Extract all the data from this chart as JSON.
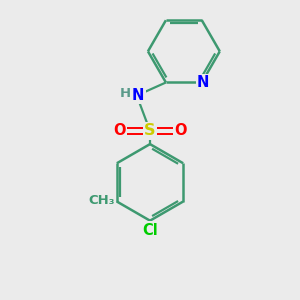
{
  "background_color": "#ebebeb",
  "atom_colors": {
    "C": "#3d9970",
    "N": "#0000ff",
    "S": "#cccc00",
    "O": "#ff0000",
    "Cl": "#00cc00",
    "H": "#5a9a8a"
  },
  "bond_color": "#3d9970",
  "figsize": [
    3.0,
    3.0
  ],
  "dpi": 100
}
